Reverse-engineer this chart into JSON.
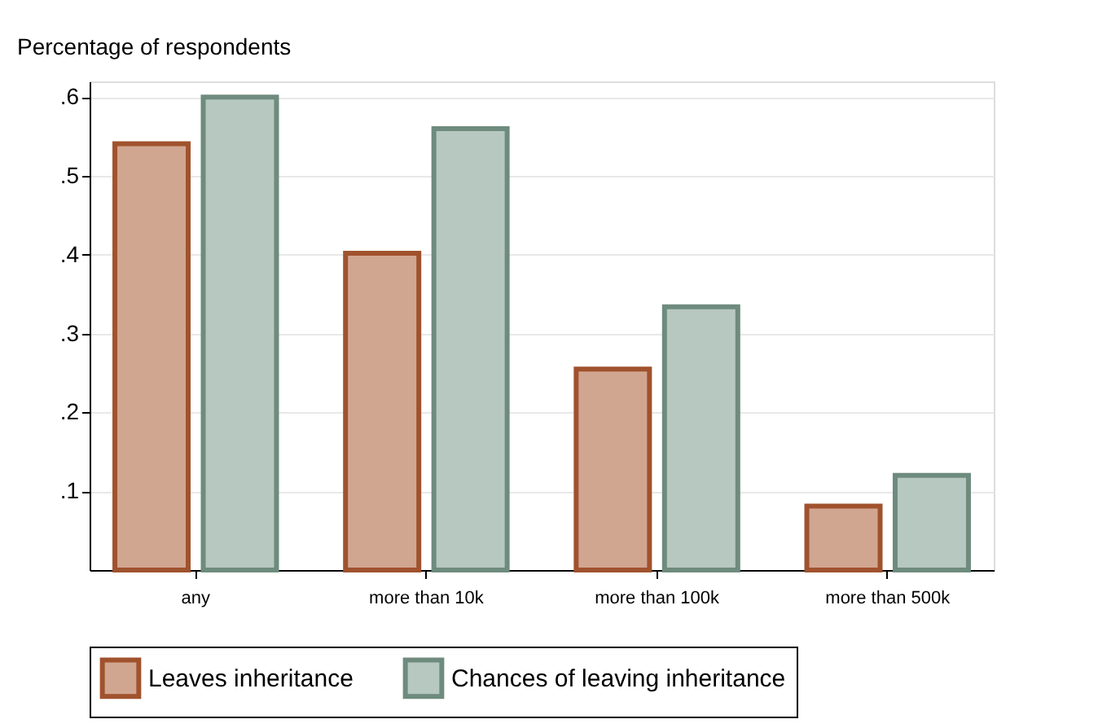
{
  "chart_data": {
    "type": "bar",
    "ylabel": "Percentage of respondents",
    "categories": [
      "any",
      "more than 10k",
      "more than 100k",
      "more than 500k"
    ],
    "series": [
      {
        "name": "Leaves inheritance",
        "color": "#d1a691",
        "values": [
          0.541,
          0.402,
          0.255,
          0.081
        ]
      },
      {
        "name": "Chances of leaving inheritance",
        "color": "#b7c8c0",
        "values": [
          0.6,
          0.56,
          0.334,
          0.12
        ]
      }
    ],
    "ylim": [
      0,
      0.62
    ],
    "yticks": [
      {
        "value": 0.1,
        "label": ".1"
      },
      {
        "value": 0.2,
        "label": ".2"
      },
      {
        "value": 0.3,
        "label": ".3"
      },
      {
        "value": 0.4,
        "label": ".4"
      },
      {
        "value": 0.5,
        "label": ".5"
      },
      {
        "value": 0.6,
        "label": ".6"
      }
    ],
    "grid": "y",
    "legend": "bottom"
  }
}
